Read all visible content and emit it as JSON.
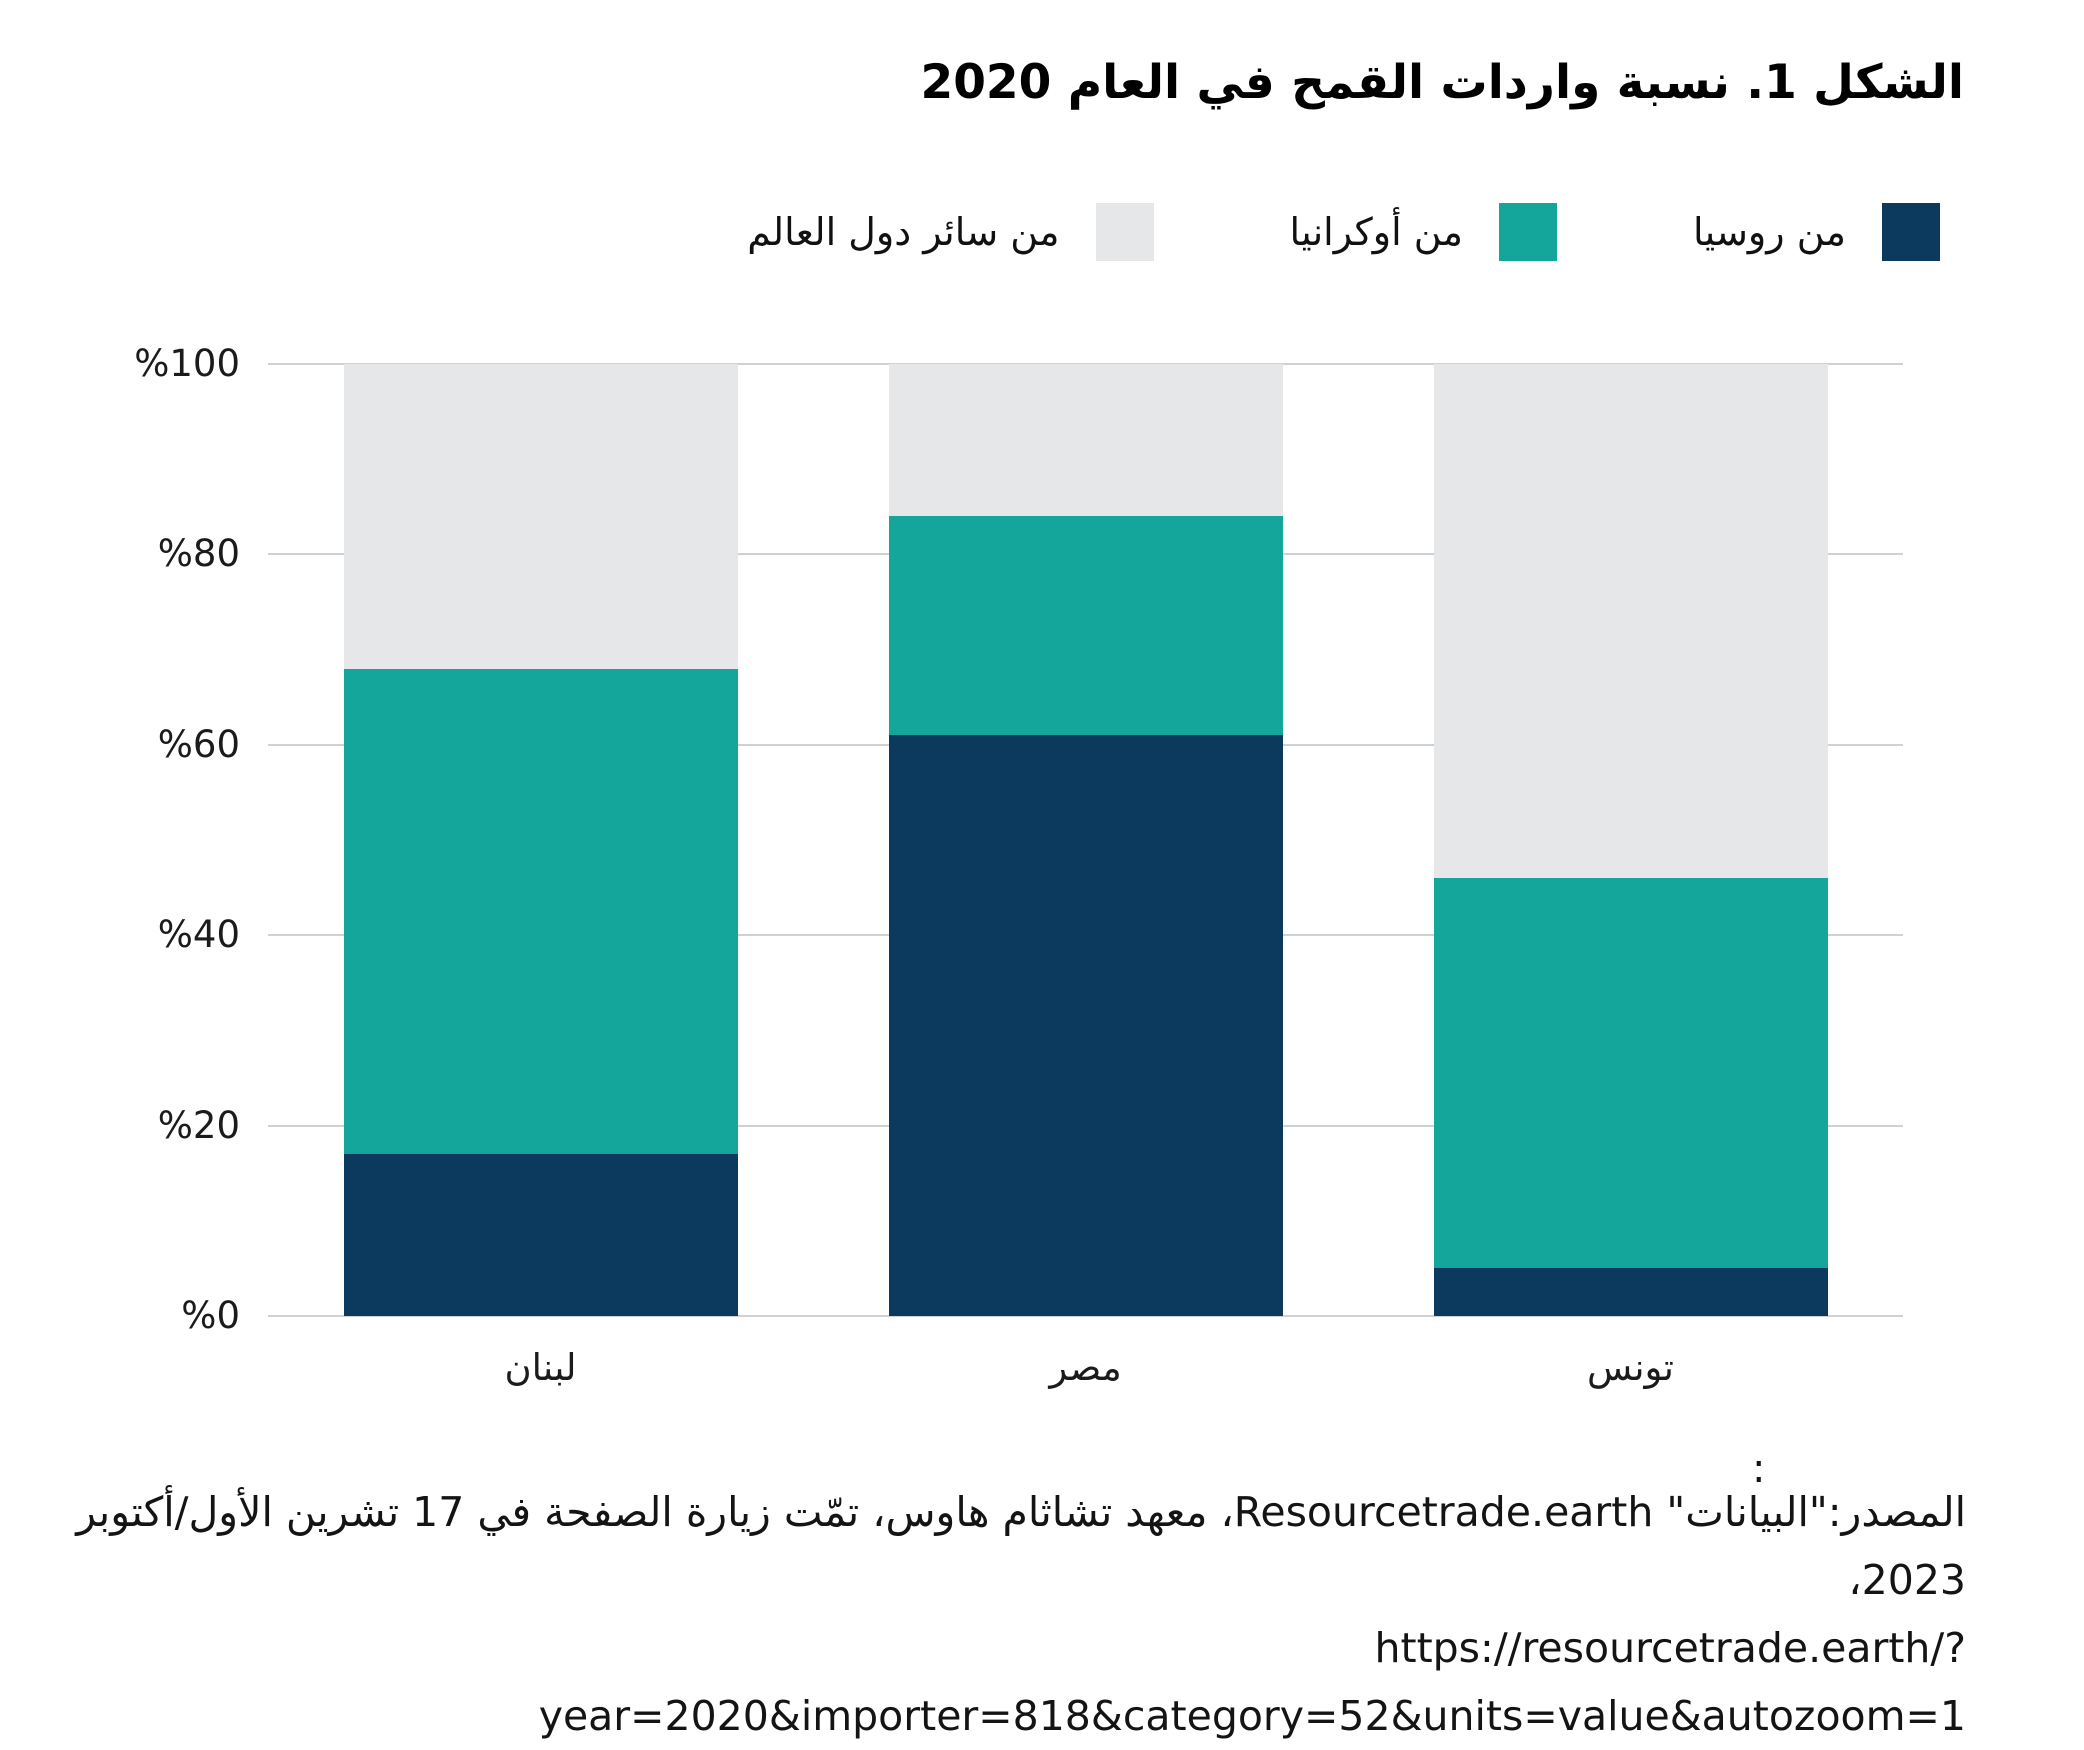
{
  "title": "الشكل 1. نسبة واردات القمح في العام 2020",
  "chart_data": {
    "type": "bar",
    "stacked": true,
    "orientation": "vertical",
    "categories": [
      "لبنان",
      "مصر",
      "تونس"
    ],
    "series": [
      {
        "key": "russia",
        "name": "من روسيا",
        "color": "#0b3a5e",
        "values": [
          17,
          61,
          5
        ]
      },
      {
        "key": "ukraine",
        "name": "من أوكرانيا",
        "color": "#14a69b",
        "values": [
          51,
          23,
          41
        ]
      },
      {
        "key": "rest",
        "name": "من سائر دول العالم",
        "color": "#e6e7e9",
        "values": [
          32,
          16,
          54
        ]
      }
    ],
    "ylabel": "",
    "xlabel": "",
    "ylim": [
      0,
      100
    ],
    "y_ticks": [
      "%100",
      "%80",
      "%60",
      "%40",
      "%20",
      "%0"
    ],
    "y_tick_values": [
      100,
      80,
      60,
      40,
      20,
      0
    ],
    "grid": true,
    "legend_position": "top-right",
    "value_unit": "percent"
  },
  "source": {
    "colon": ":",
    "line1": "المصدر:\"البيانات\" Resourcetrade.earth، معهد تشاثام هاوس، تمّت زيارة الصفحة في 17 تشرين الأول/أكتوبر 2023،",
    "line2": "https://resourcetrade.earth/?year=2020&importer=818&category=52&units=value&autozoom=1"
  },
  "colors": {
    "background": "#ffffff",
    "gridline": "#cfd1d2",
    "title_text": "#000000",
    "axis_text": "#1b1b1b",
    "source_text": "#141414"
  }
}
